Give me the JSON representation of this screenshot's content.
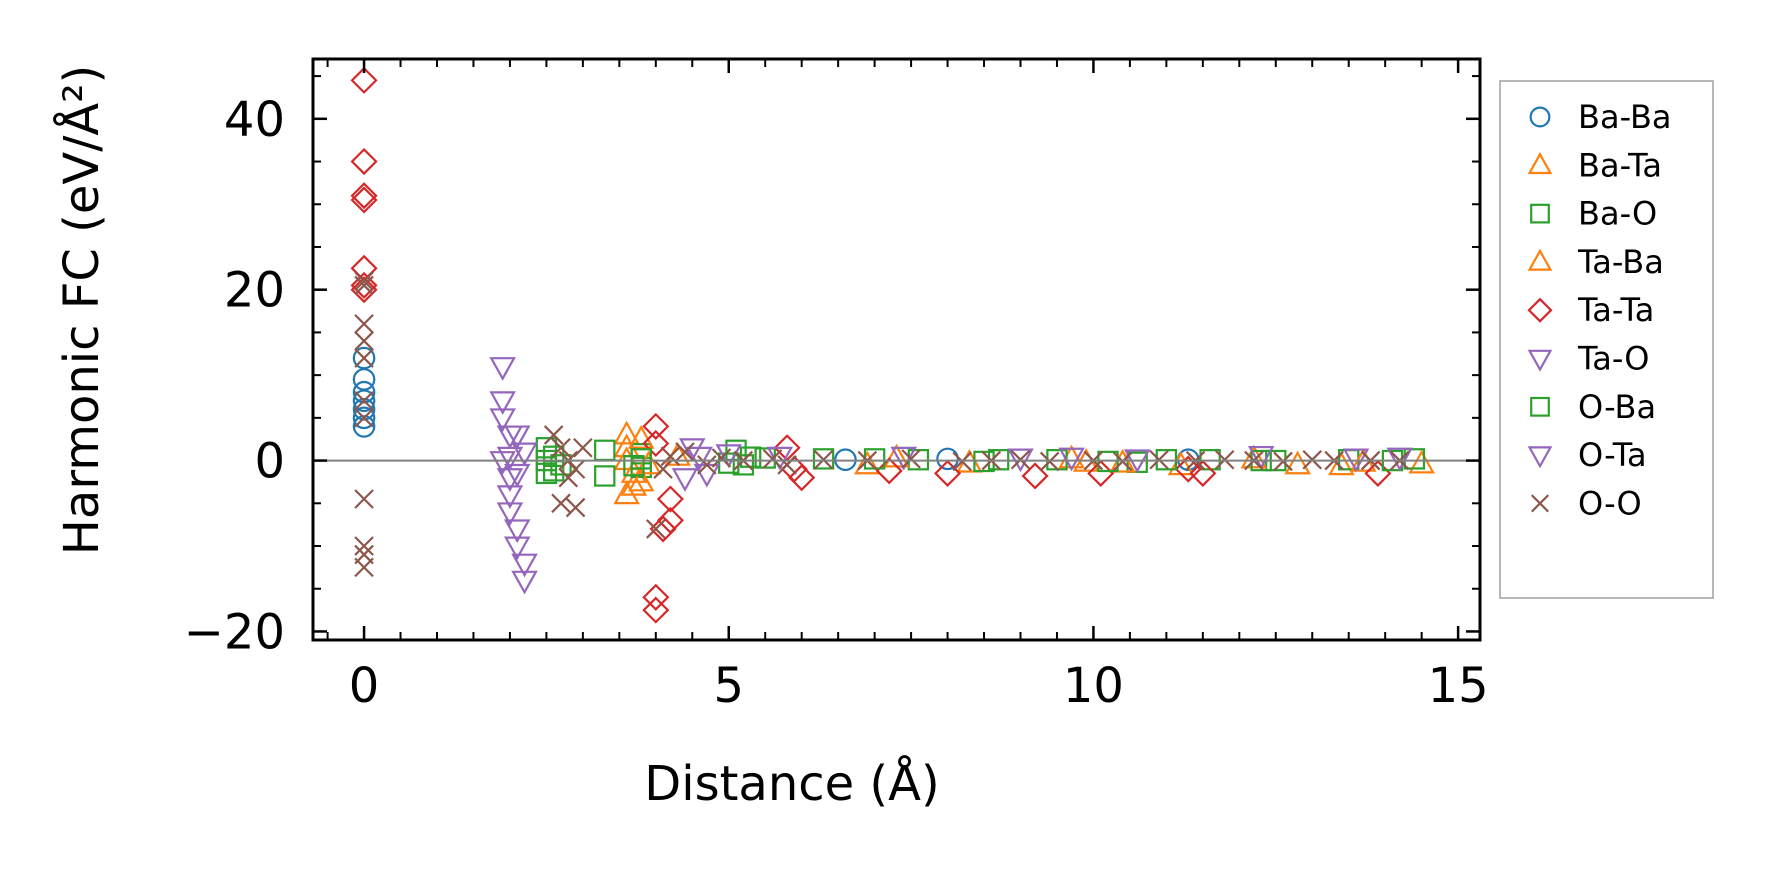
{
  "chart_data": {
    "type": "scatter",
    "title": "",
    "xlabel": "Distance (Å)",
    "ylabel": "Harmonic FC (eV/Å²)",
    "xlim": [
      -0.7,
      15.3
    ],
    "ylim": [
      -21,
      47
    ],
    "xticks": [
      0,
      5,
      10,
      15
    ],
    "yticks": [
      40,
      20,
      0,
      -20
    ],
    "xtick_labels": [
      "0",
      "5",
      "10",
      "15"
    ],
    "ytick_labels": [
      "40",
      "20",
      "0",
      "−20"
    ],
    "zero_line": true,
    "grid": false,
    "legend_position": "outside-right",
    "series": [
      {
        "name": "Ba-Ba",
        "marker": "circle",
        "color": "#1f77b4",
        "x": [
          0,
          0,
          0,
          0,
          0,
          0,
          0,
          6.6,
          8.0,
          11.3
        ],
        "y": [
          12,
          9.5,
          8,
          7,
          6,
          5,
          4,
          0.1,
          0.2,
          0.1
        ]
      },
      {
        "name": "Ba-Ta",
        "marker": "triangle-up",
        "color": "#ff7f0e",
        "x": [
          3.6,
          3.6,
          3.6,
          3.7,
          3.7,
          3.6,
          6.9,
          8.3,
          9.7,
          11.2,
          12.8,
          13.4,
          14.5
        ],
        "y": [
          3.0,
          1.5,
          0.0,
          -1.5,
          -3.0,
          -4.0,
          -0.5,
          -0.3,
          0.2,
          -0.6,
          -0.5,
          -0.6,
          -0.4
        ]
      },
      {
        "name": "Ba-O",
        "marker": "square",
        "color": "#2ca02c",
        "x": [
          2.5,
          2.5,
          2.5,
          3.3,
          3.3,
          3.8,
          3.8,
          5.1,
          5.2,
          5.5,
          6.3,
          7.6,
          8.5,
          9.5,
          10.6,
          11.6,
          12.5,
          13.5,
          14.4
        ],
        "y": [
          1.5,
          0.0,
          -1.5,
          1.2,
          -1.8,
          0.8,
          -0.8,
          1.2,
          -0.5,
          0.3,
          0.2,
          0.1,
          -0.1,
          0.1,
          -0.2,
          0.1,
          0.0,
          0.1,
          0.2
        ]
      },
      {
        "name": "Ta-Ba",
        "marker": "triangle-up",
        "color": "#ff7f0e",
        "x": [
          3.8,
          3.9,
          3.8,
          4.3,
          7.3,
          9.9,
          10.4,
          12.2,
          13.7
        ],
        "y": [
          2.5,
          -0.5,
          -2.5,
          0.5,
          0.3,
          -0.2,
          -0.3,
          0.2,
          -0.2
        ]
      },
      {
        "name": "Ta-Ta",
        "marker": "diamond",
        "color": "#d62728",
        "x": [
          0,
          0,
          0,
          0,
          0,
          0,
          0,
          4.0,
          4.0,
          4.2,
          4.2,
          4.1,
          4.0,
          4.0,
          5.8,
          5.9,
          6.0,
          7.2,
          8.0,
          9.2,
          10.1,
          11.3,
          11.5,
          13.9
        ],
        "y": [
          44.5,
          35,
          31,
          30.5,
          22.5,
          20.5,
          20,
          4,
          2,
          -4.5,
          -7,
          -8,
          -16,
          -17.5,
          1.5,
          -1,
          -2,
          -1.2,
          -1.5,
          -1.8,
          -1.5,
          -1.0,
          -1.5,
          -1.5
        ]
      },
      {
        "name": "Ta-O",
        "marker": "triangle-down",
        "color": "#9467bd",
        "x": [
          1.9,
          1.9,
          1.9,
          1.9,
          2.0,
          2.0,
          2.0,
          2.1,
          2.1,
          2.2,
          2.2,
          2.0
        ],
        "y": [
          11,
          7,
          5,
          0,
          -2,
          -4,
          -6,
          -8,
          -10,
          -12,
          -14,
          3
        ]
      },
      {
        "name": "O-Ba",
        "marker": "square",
        "color": "#2ca02c",
        "x": [
          2.6,
          2.7,
          2.6,
          3.8,
          3.7,
          5.3,
          5.0,
          7.0,
          8.7,
          10.2,
          11.0,
          12.3,
          14.1
        ],
        "y": [
          0.5,
          -0.5,
          -1.2,
          0.2,
          -0.6,
          0.4,
          -0.3,
          0.2,
          0.1,
          -0.1,
          0.1,
          0.0,
          0.0
        ]
      },
      {
        "name": "O-Ta",
        "marker": "triangle-down",
        "color": "#9467bd",
        "x": [
          2.0,
          2.1,
          2.2,
          2.1,
          4.5,
          4.6,
          4.7,
          4.4,
          5.0,
          5.7,
          7.4,
          9.0,
          9.7,
          10.6,
          12.3,
          13.6,
          14.2
        ],
        "y": [
          0.5,
          -1.5,
          1.0,
          3,
          1.5,
          0.5,
          -1.5,
          -2.0,
          0.8,
          0.5,
          0.5,
          0.3,
          0.4,
          0.2,
          0.6,
          0.3,
          0.4
        ]
      },
      {
        "name": "O-O",
        "marker": "x",
        "color": "#8c564b",
        "x": [
          0,
          0,
          0,
          0,
          0,
          0,
          0,
          0,
          0,
          0,
          0,
          2.6,
          2.7,
          2.8,
          2.9,
          2.8,
          2.7,
          2.9,
          3.0,
          4.0,
          4.1,
          4.2,
          4.4,
          4.7,
          4.9,
          5.2,
          5.6,
          5.8,
          6.3,
          6.9,
          7.5,
          8.2,
          8.6,
          9.0,
          9.4,
          10.0,
          10.4,
          10.9,
          11.4,
          11.8,
          12.2,
          12.6,
          13.0,
          13.3,
          13.8,
          14.2
        ],
        "y": [
          21,
          20.5,
          16,
          14,
          12,
          7,
          5,
          -4.5,
          -10,
          -11,
          -12.5,
          3,
          1.5,
          0,
          -1,
          -2,
          -5,
          -5.5,
          1.5,
          -8,
          -1,
          0.5,
          1,
          -0.5,
          0.3,
          0,
          0.2,
          -0.5,
          0.1,
          0,
          0.2,
          -0.1,
          0,
          0.1,
          -0.1,
          0,
          -0.1,
          0.1,
          0,
          0.1,
          0,
          -0.1,
          0.1,
          0,
          0,
          0
        ]
      }
    ]
  }
}
